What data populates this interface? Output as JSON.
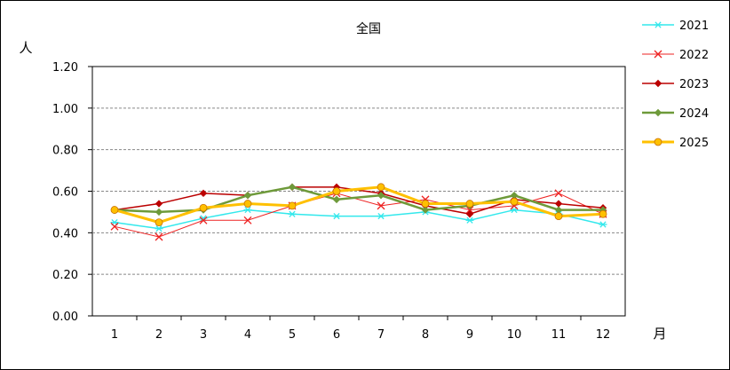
{
  "chart_data": {
    "type": "line",
    "title": "全国",
    "ylabel": "人",
    "xlabel": "月",
    "categories": [
      "1",
      "2",
      "3",
      "4",
      "5",
      "6",
      "7",
      "8",
      "9",
      "10",
      "11",
      "12"
    ],
    "y_ticks": [
      "0.00",
      "0.20",
      "0.40",
      "0.60",
      "0.80",
      "1.00",
      "1.20"
    ],
    "ylim": [
      0,
      1.2
    ],
    "grid": "horizontal dashed",
    "legend_position": "right",
    "series": [
      {
        "name": "2021",
        "color": "#33e8ec",
        "marker": "asterisk",
        "values": [
          0.45,
          0.42,
          0.47,
          0.51,
          0.49,
          0.48,
          0.48,
          0.5,
          0.46,
          0.51,
          0.49,
          0.44
        ]
      },
      {
        "name": "2022",
        "color": "#ee2222",
        "marker": "x",
        "values": [
          0.43,
          0.38,
          0.46,
          0.46,
          0.53,
          0.59,
          0.53,
          0.56,
          0.51,
          0.53,
          0.59,
          0.49
        ]
      },
      {
        "name": "2023",
        "color": "#bb0000",
        "marker": "diamond",
        "values": [
          0.51,
          0.54,
          0.59,
          0.58,
          0.62,
          0.62,
          0.59,
          0.53,
          0.49,
          0.56,
          0.54,
          0.52
        ]
      },
      {
        "name": "2024",
        "color": "#6e9a3a",
        "marker": "diamond",
        "values": [
          0.51,
          0.5,
          0.51,
          0.58,
          0.62,
          0.56,
          0.58,
          0.51,
          0.53,
          0.58,
          0.51,
          0.51
        ]
      },
      {
        "name": "2025",
        "color": "#ffc000",
        "marker": "circle",
        "values": [
          0.51,
          0.45,
          0.52,
          0.54,
          0.53,
          0.6,
          0.62,
          0.54,
          0.54,
          0.55,
          0.48,
          0.49
        ]
      }
    ]
  }
}
